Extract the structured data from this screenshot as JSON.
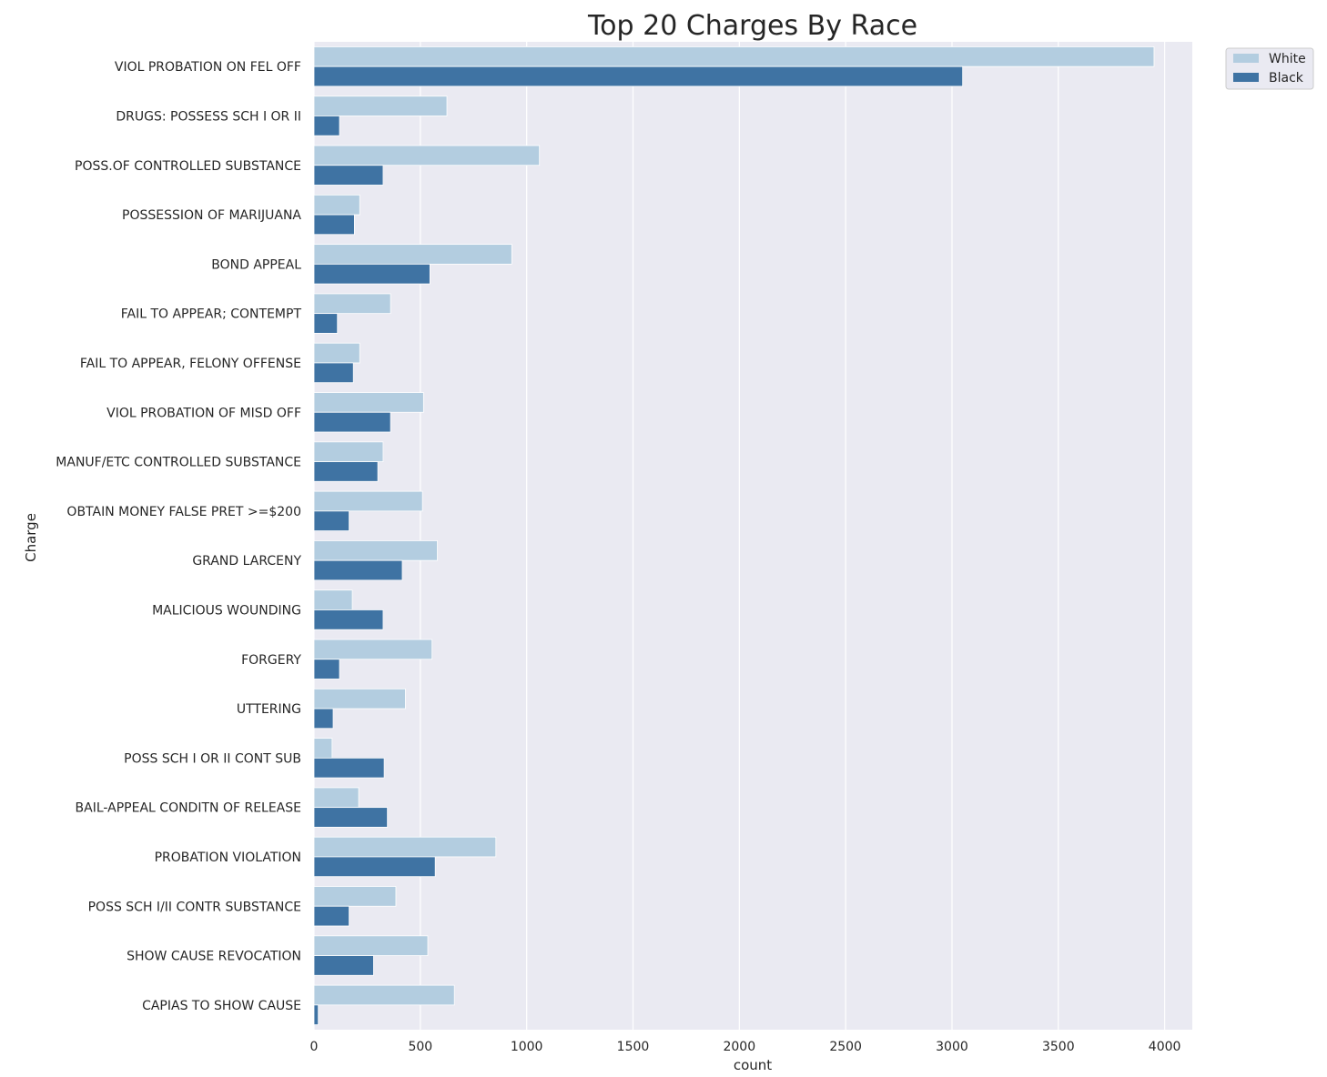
{
  "chart_data": {
    "type": "bar",
    "orientation": "horizontal",
    "title": "Top 20 Charges By Race",
    "xlabel": "count",
    "ylabel": "Charge",
    "xlim": [
      0,
      4130
    ],
    "xticks": [
      0,
      500,
      1000,
      1500,
      2000,
      2500,
      3000,
      3500,
      4000
    ],
    "grid": true,
    "legend_position": "top-right outside",
    "categories": [
      "VIOL PROBATION ON FEL OFF",
      "DRUGS: POSSESS SCH I OR II",
      "POSS.OF CONTROLLED SUBSTANCE",
      "POSSESSION OF MARIJUANA",
      "BOND APPEAL",
      "FAIL TO APPEAR; CONTEMPT",
      "FAIL TO APPEAR, FELONY OFFENSE",
      "VIOL PROBATION OF MISD OFF",
      "MANUF/ETC CONTROLLED SUBSTANCE",
      "OBTAIN MONEY FALSE PRET >=$200",
      "GRAND LARCENY",
      "MALICIOUS WOUNDING",
      "FORGERY",
      "UTTERING",
      "POSS SCH I OR II CONT SUB",
      "BAIL-APPEAL CONDITN OF RELEASE",
      "PROBATION VIOLATION",
      "POSS SCH I/II CONTR SUBSTANCE",
      "SHOW CAUSE REVOCATION",
      "CAPIAS TO SHOW CAUSE"
    ],
    "series": [
      {
        "name": "White",
        "color": "#b3cde0",
        "values": [
          3950,
          625,
          1060,
          215,
          930,
          360,
          215,
          515,
          325,
          510,
          580,
          180,
          555,
          430,
          85,
          210,
          855,
          385,
          535,
          660
        ]
      },
      {
        "name": "Black",
        "color": "#3f73a3",
        "values": [
          3050,
          120,
          325,
          190,
          545,
          110,
          185,
          360,
          300,
          165,
          415,
          325,
          120,
          90,
          330,
          345,
          570,
          165,
          280,
          20
        ]
      }
    ]
  }
}
